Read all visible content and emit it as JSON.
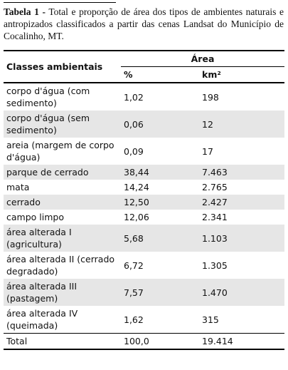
{
  "caption": {
    "label": "Tabela 1 -",
    "text": "Total e proporção de área dos tipos de ambientes naturais e antropizados classificados a partir das cenas Landsat do Município de Cocalinho, MT."
  },
  "table": {
    "header": {
      "classes": "Classes ambientais",
      "area": "Área",
      "percent": "%",
      "km2": "km²"
    },
    "rows": [
      [
        "corpo d'água (com sedimento)",
        "1,02",
        "198"
      ],
      [
        "corpo d'água (sem sedimento)",
        "0,06",
        "12"
      ],
      [
        "areia (margem de corpo d'água)",
        "0,09",
        "17"
      ],
      [
        "parque de cerrado",
        "38,44",
        "7.463"
      ],
      [
        "mata",
        "14,24",
        "2.765"
      ],
      [
        "cerrado",
        "12,50",
        "2.427"
      ],
      [
        "campo limpo",
        "12,06",
        "2.341"
      ],
      [
        "área alterada I (agricultura)",
        "5,68",
        "1.103"
      ],
      [
        "área alterada II (cerrado degradado)",
        "6,72",
        "1.305"
      ],
      [
        "área alterada III (pastagem)",
        "7,57",
        "1.470"
      ],
      [
        "área alterada IV (queimada)",
        "1,62",
        "315"
      ],
      [
        "Total",
        "100,0",
        "19.414"
      ]
    ]
  }
}
